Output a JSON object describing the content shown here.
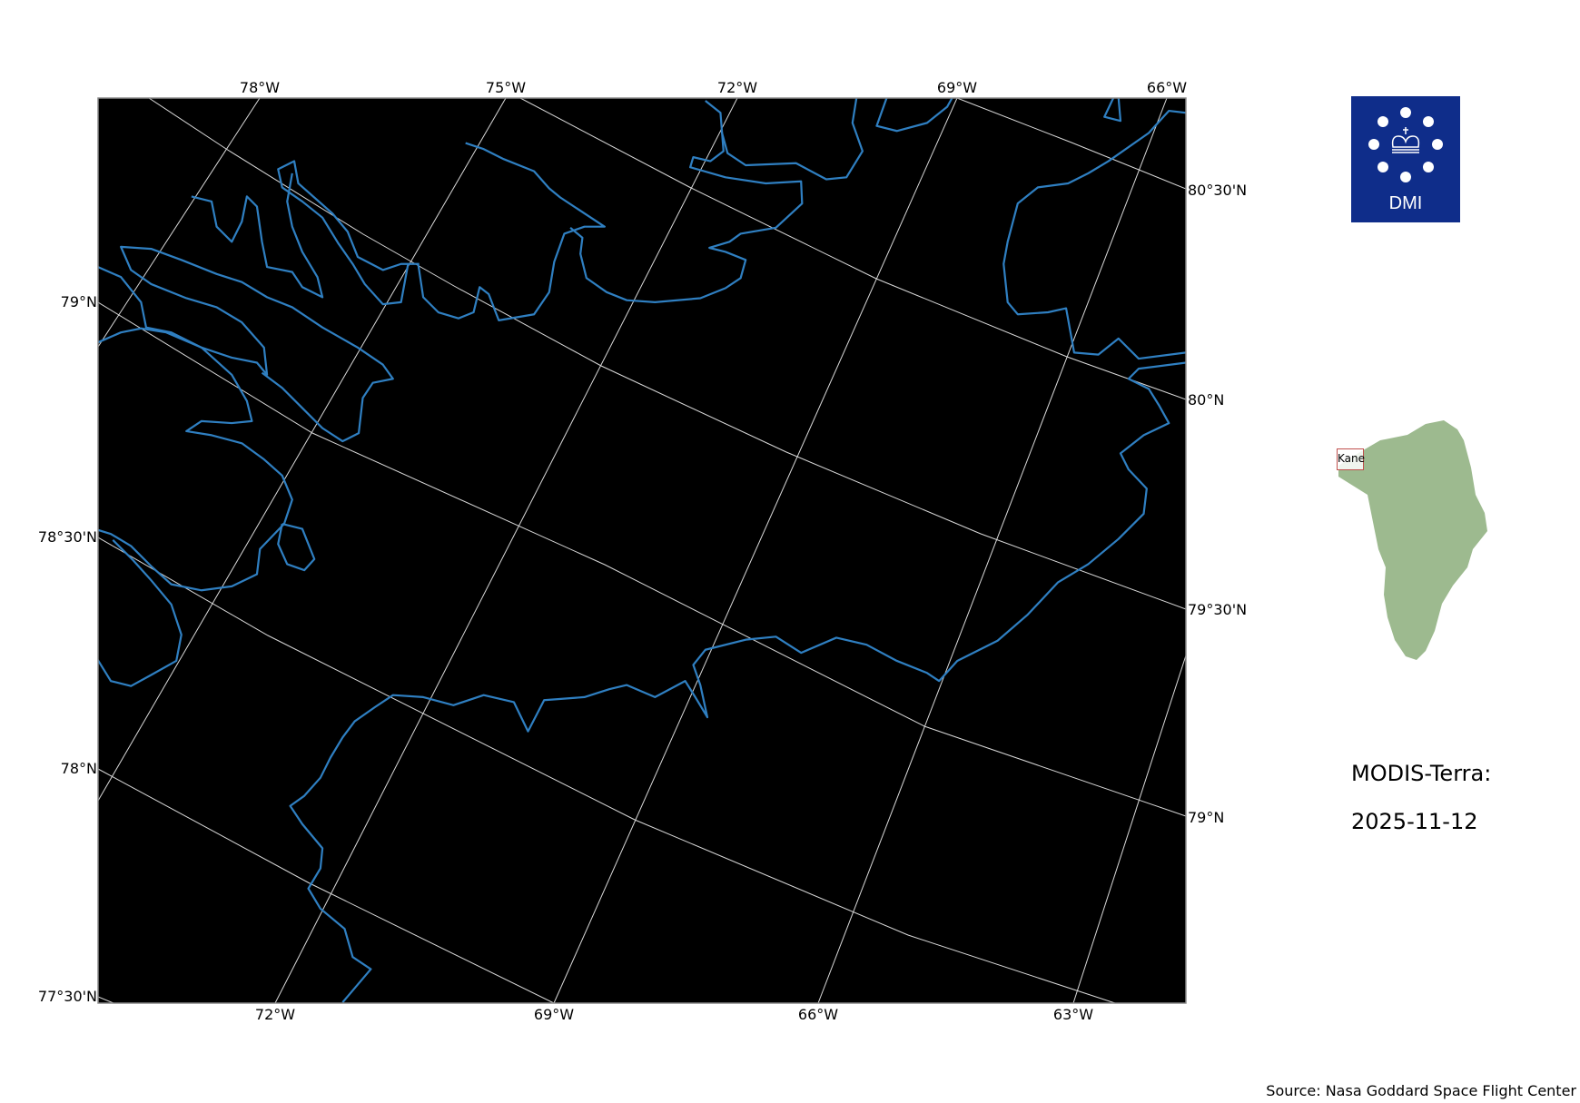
{
  "map": {
    "top_lon_labels": [
      "78°W",
      "75°W",
      "72°W",
      "69°W",
      "66°W"
    ],
    "bottom_lon_labels": [
      "72°W",
      "69°W",
      "66°W",
      "63°W"
    ],
    "left_lat_labels": [
      "79°N",
      "78°30'N",
      "78°N",
      "77°30'N"
    ],
    "right_lat_labels": [
      "80°30'N",
      "80°N",
      "79°30'N",
      "79°N"
    ],
    "background_color": "#000000",
    "coastline_color": "#2f7fc1",
    "gridline_color": "#d9d9d9"
  },
  "logo": {
    "text": "DMI",
    "color": "#0f2d8a"
  },
  "inset": {
    "region_label": "Kane",
    "land_color": "#9dba8f",
    "box_color": "#c0504d"
  },
  "caption": {
    "line1": "MODIS-Terra:",
    "line2": "2025-11-12"
  },
  "source": "Source: Nasa Goddard Space Flight Center"
}
